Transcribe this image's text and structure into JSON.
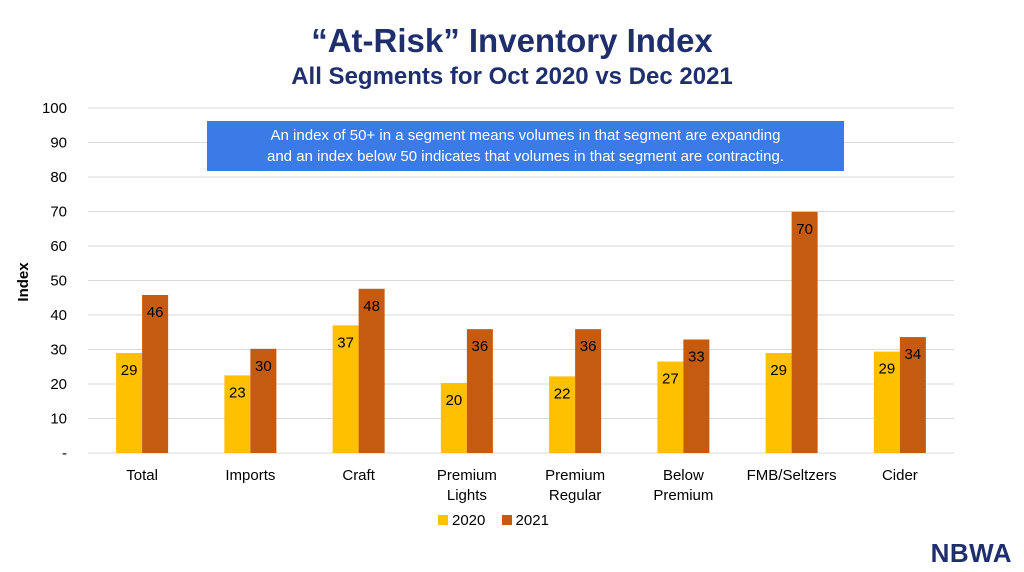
{
  "title": "“At-Risk” Inventory Index",
  "subtitle": "All Segments for Oct 2020 vs Dec 2021",
  "note_lines": [
    "An index of 50+ in a segment means volumes in that segment are expanding",
    "and an index below 50 indicates that volumes in that segment are contracting."
  ],
  "logo_text": "NBWA",
  "chart_data": {
    "type": "bar",
    "title": "“At-Risk” Inventory Index",
    "subtitle": "All Segments for Oct 2020 vs Dec 2021",
    "ylabel": "Index",
    "xlabel": "",
    "ylim": [
      0,
      100
    ],
    "yticks": [
      "-",
      "10",
      "20",
      "30",
      "40",
      "50",
      "60",
      "70",
      "80",
      "90",
      "100"
    ],
    "grid": true,
    "legend_position": "bottom",
    "categories": [
      [
        "Total"
      ],
      [
        "Imports"
      ],
      [
        "Craft"
      ],
      [
        "Premium",
        "Lights"
      ],
      [
        "Premium",
        "Regular"
      ],
      [
        "Below",
        "Premium"
      ],
      [
        "FMB/Seltzers"
      ],
      [
        "Cider"
      ]
    ],
    "series": [
      {
        "name": "2020",
        "color": "#ffc000",
        "values": [
          29,
          22.5,
          37,
          20.3,
          22.2,
          26.5,
          29,
          29.4
        ],
        "labels": [
          "29",
          "23",
          "37",
          "20",
          "22",
          "27",
          "29",
          "29"
        ]
      },
      {
        "name": "2021",
        "color": "#c55a11",
        "values": [
          45.8,
          30.2,
          47.6,
          35.9,
          35.9,
          32.9,
          69.9,
          33.6
        ],
        "labels": [
          "46",
          "30",
          "48",
          "36",
          "36",
          "33",
          "70",
          "34"
        ]
      }
    ]
  }
}
